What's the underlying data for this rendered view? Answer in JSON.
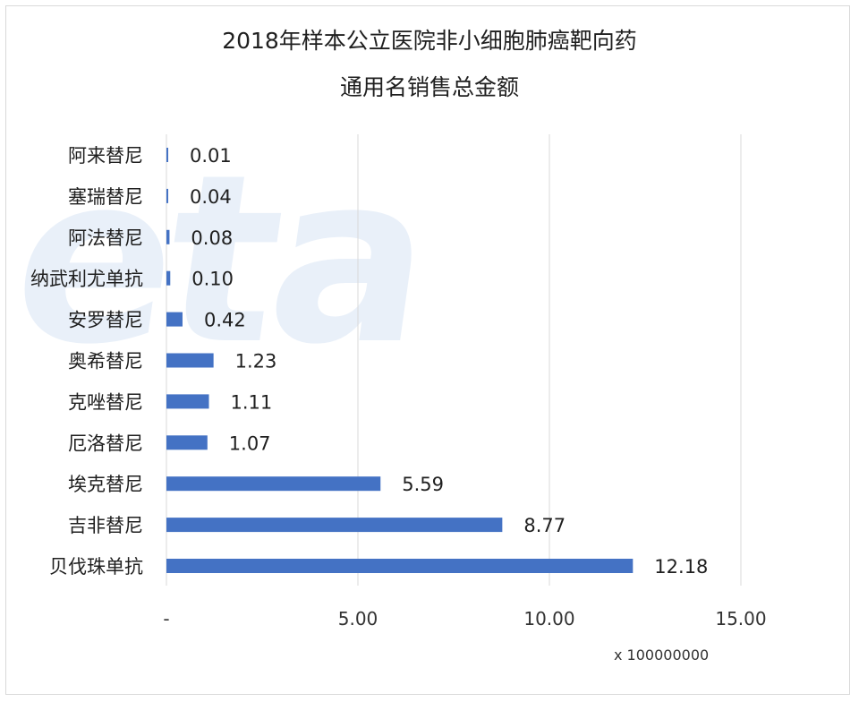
{
  "chart_data": {
    "type": "bar",
    "orientation": "horizontal",
    "title": "2018年样本公立医院非小细胞肺癌靶向药",
    "subtitle": "通用名销售总金额",
    "categories": [
      "阿来替尼",
      "塞瑞替尼",
      "阿法替尼",
      "纳武利尤单抗",
      "安罗替尼",
      "奥希替尼",
      "克唑替尼",
      "厄洛替尼",
      "埃克替尼",
      "吉非替尼",
      "贝伐珠单抗"
    ],
    "values": [
      0.01,
      0.04,
      0.08,
      0.1,
      0.42,
      1.23,
      1.11,
      1.07,
      5.59,
      8.77,
      12.18
    ],
    "data_labels": [
      "0.01",
      "0.04",
      "0.08",
      "0.10",
      "0.42",
      "1.23",
      "1.11",
      "1.07",
      "5.59",
      "8.77",
      "12.18"
    ],
    "xlim": [
      0,
      15
    ],
    "xticks": [
      0,
      5,
      10,
      15
    ],
    "xtick_labels": [
      "-",
      "5.00",
      "10.00",
      "15.00"
    ],
    "x_multiplier_label": "x 100000000",
    "grid": true,
    "bar_color": "#4472c4",
    "grid_color": "#d9d9d9"
  }
}
